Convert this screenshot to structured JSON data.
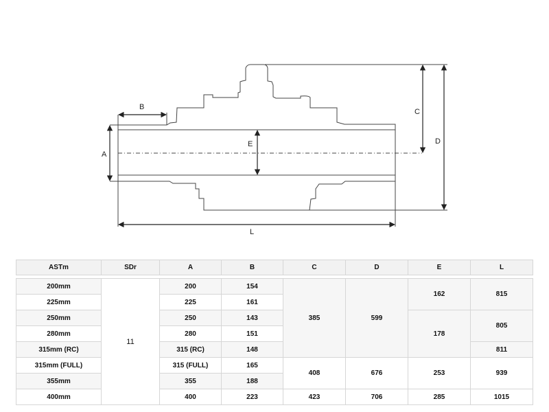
{
  "drawing": {
    "labels": {
      "A": "A",
      "B": "B",
      "C": "C",
      "D": "D",
      "E": "E",
      "L": "L"
    }
  },
  "table": {
    "headers": [
      "ASTm",
      "SDr",
      "A",
      "B",
      "C",
      "D",
      "E",
      "L"
    ],
    "sdr": "11",
    "rows": [
      {
        "astm": "200mm",
        "a": "200",
        "b": "154"
      },
      {
        "astm": "225mm",
        "a": "225",
        "b": "161"
      },
      {
        "astm": "250mm",
        "a": "250",
        "b": "143"
      },
      {
        "astm": "280mm",
        "a": "280",
        "b": "151"
      },
      {
        "astm": "315mm (RC)",
        "a": "315 (RC)",
        "b": "148"
      },
      {
        "astm": "315mm (FULL)",
        "a": "315 (FULL)",
        "b": "165"
      },
      {
        "astm": "355mm",
        "a": "355",
        "b": "188"
      },
      {
        "astm": "400mm",
        "a": "400",
        "b": "223"
      }
    ],
    "c": [
      "385",
      "408",
      "423"
    ],
    "d": [
      "599",
      "676",
      "706"
    ],
    "e": [
      "162",
      "178",
      "253",
      "285"
    ],
    "l": [
      "815",
      "805",
      "811",
      "939",
      "1015"
    ]
  }
}
